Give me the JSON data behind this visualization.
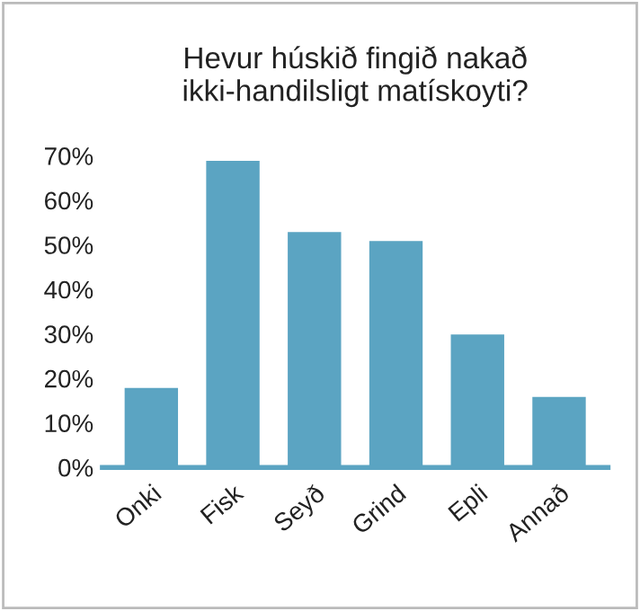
{
  "chart_data": {
    "type": "bar",
    "title": "Hevur húskið fingið nakað\nikki-handilsligt matískoyti?",
    "categories": [
      "Onki",
      "Fisk",
      "Seyð",
      "Grind",
      "Epli",
      "Annað"
    ],
    "values": [
      18,
      69,
      53,
      51,
      30,
      16
    ],
    "color": "#5ba4c2",
    "ylim": [
      0,
      70
    ],
    "yticks": [
      {
        "value": 0,
        "label": "0%"
      },
      {
        "value": 10,
        "label": "10%"
      },
      {
        "value": 20,
        "label": "20%"
      },
      {
        "value": 30,
        "label": "30%"
      },
      {
        "value": 40,
        "label": "40%"
      },
      {
        "value": 50,
        "label": "50%"
      },
      {
        "value": 60,
        "label": "60%"
      },
      {
        "value": 70,
        "label": "70%"
      }
    ],
    "grid": false,
    "legend": false
  }
}
